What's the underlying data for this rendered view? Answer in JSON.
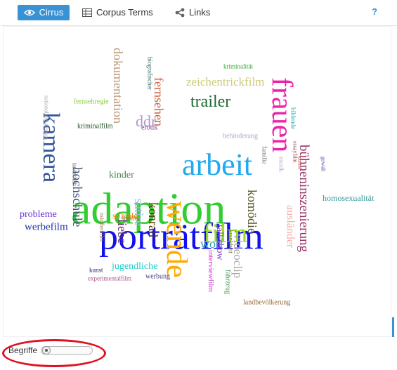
{
  "tabs": [
    {
      "label": "Cirrus",
      "icon": "eye-icon",
      "active": true
    },
    {
      "label": "Corpus Terms",
      "icon": "table-icon",
      "active": false
    },
    {
      "label": "Links",
      "icon": "share-icon",
      "active": false
    }
  ],
  "help_label": "?",
  "cloud_words": [
    {
      "text": "adaption",
      "color": "#33cc33"
    },
    {
      "text": "porträtfilm",
      "color": "#1111ee"
    },
    {
      "text": "wende",
      "color": "#ffaa00"
    },
    {
      "text": "frauen",
      "color": "#ee22aa"
    },
    {
      "text": "arbeit",
      "color": "#22aaee"
    },
    {
      "text": "kamera",
      "color": "#335599"
    },
    {
      "text": "film",
      "color": "#99dd22"
    },
    {
      "text": "trailer",
      "color": "#226633"
    },
    {
      "text": "bühneninszenierung",
      "color": "#993366"
    },
    {
      "text": "fernsehen",
      "color": "#cc6644"
    },
    {
      "text": "dokumentation",
      "color": "#bb9977"
    },
    {
      "text": "zeichentrickfilm",
      "color": "#cccc77"
    },
    {
      "text": "ddr",
      "color": "#aa99cc"
    },
    {
      "text": "hochschule",
      "color": "#445577"
    },
    {
      "text": "konrad",
      "color": "#553300"
    },
    {
      "text": "satire",
      "color": "#99bbdd"
    },
    {
      "text": "liebe",
      "color": "#663366"
    },
    {
      "text": "komödie",
      "color": "#555522"
    },
    {
      "text": "videoclip",
      "color": "#aaaaaa"
    },
    {
      "text": "wolf",
      "color": "#22aaaa"
    },
    {
      "text": "talkshow",
      "color": "#8844cc"
    },
    {
      "text": "ausländer",
      "color": "#ffaaaa"
    },
    {
      "text": "werbefilm",
      "color": "#2233aa"
    },
    {
      "text": "probleme",
      "color": "#6633cc"
    },
    {
      "text": "kinder",
      "color": "#448844"
    },
    {
      "text": "soziale",
      "color": "#ee8800"
    },
    {
      "text": "jugendliche",
      "color": "#22cccc"
    },
    {
      "text": "homosexualität",
      "color": "#339999"
    },
    {
      "text": "interviewfilm",
      "color": "#cc33cc"
    },
    {
      "text": "fahrzeug",
      "color": "#449955"
    },
    {
      "text": "krankheit",
      "color": "#777733"
    },
    {
      "text": "landbevölkerung",
      "color": "#996633"
    },
    {
      "text": "fernsehregie",
      "color": "#88cc33"
    },
    {
      "text": "kriminalfilm",
      "color": "#225522"
    },
    {
      "text": "erotik",
      "color": "#883388"
    },
    {
      "text": "biografischer",
      "color": "#336666"
    },
    {
      "text": "kriminalität",
      "color": "#33aa33"
    },
    {
      "text": "nationalsozialismus",
      "color": "#aaaaaa"
    },
    {
      "text": "landschaft",
      "color": "#555555"
    },
    {
      "text": "thriller",
      "color": "#777744"
    },
    {
      "text": "märchenfilm",
      "color": "#997744"
    },
    {
      "text": "kunst",
      "color": "#222266"
    },
    {
      "text": "experimentalfilm",
      "color": "#aa5588"
    },
    {
      "text": "werbung",
      "color": "#444488"
    },
    {
      "text": "behinderung",
      "color": "#aaaacc"
    },
    {
      "text": "familie",
      "color": "#777777"
    },
    {
      "text": "bildende",
      "color": "#22aaaa"
    },
    {
      "text": "musik",
      "color": "#bbaacc"
    },
    {
      "text": "essayfilm",
      "color": "#995555"
    },
    {
      "text": "gewalt",
      "color": "#6644aa"
    },
    {
      "text": "kunst",
      "color": "#cc5555"
    }
  ],
  "footer": {
    "slider_label": "Begriffe",
    "slider_value": 0
  }
}
